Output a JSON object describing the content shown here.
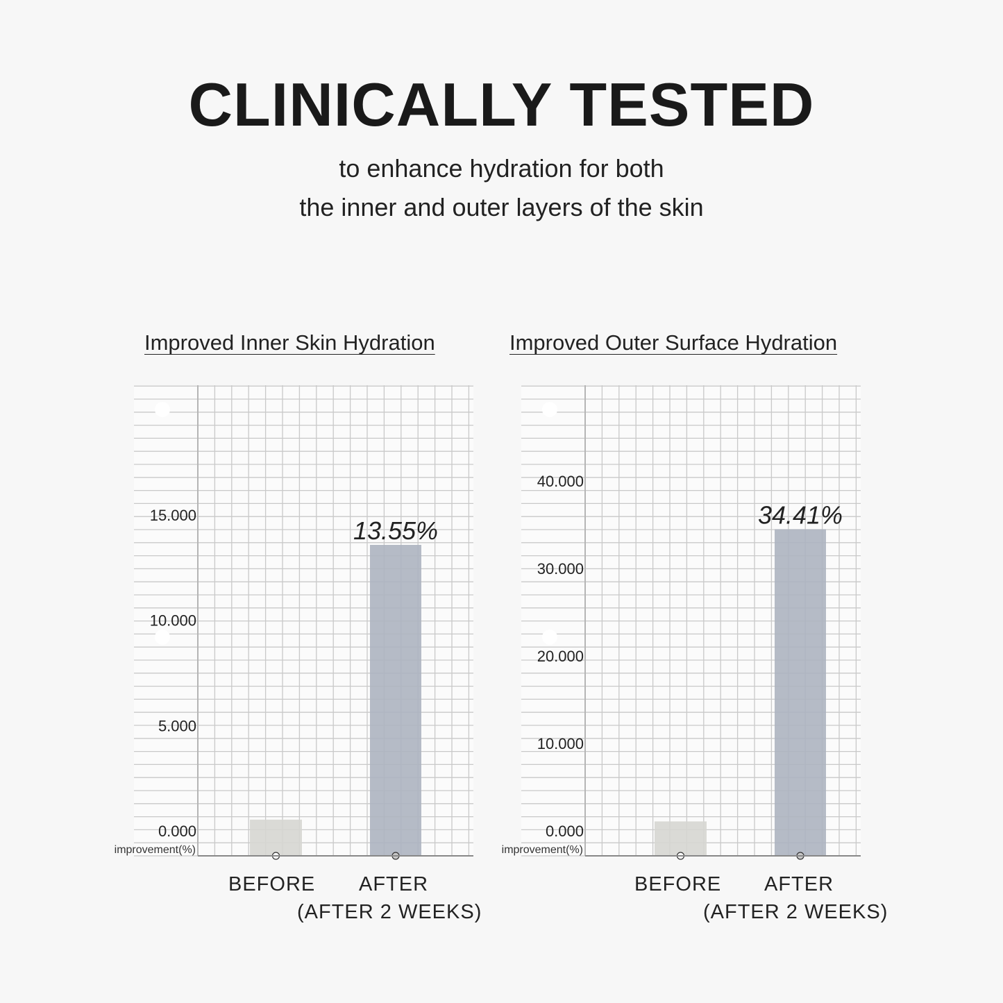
{
  "header": {
    "title": "CLINICALLY TESTED",
    "subtitle_line1": "to enhance hydration for both",
    "subtitle_line2": "the inner and outer layers of the skin"
  },
  "colors": {
    "background": "#f7f7f7",
    "grid_paper": "#fbfbfb",
    "grid_line": "#c9c9c9",
    "before_bar": "#d6d6d2",
    "after_bar": "#adb4c0"
  },
  "chart_data": [
    {
      "type": "bar",
      "title": "Improved Inner Skin Hydration",
      "ylabel": "improvement(%)",
      "categories": [
        "BEFORE",
        "AFTER"
      ],
      "category_sublabels": [
        "",
        "(AFTER 2 WEEKS)"
      ],
      "values": [
        0.5,
        13.55
      ],
      "data_labels": [
        "",
        "13.55%"
      ],
      "yticks": [
        "0.000",
        "5.000",
        "10.000",
        "15.000"
      ],
      "ytick_values": [
        0,
        5,
        10,
        15
      ],
      "ylim": [
        0,
        20
      ],
      "grid": true
    },
    {
      "type": "bar",
      "title": "Improved Outer Surface Hydration",
      "ylabel": "improvement(%)",
      "categories": [
        "BEFORE",
        "AFTER"
      ],
      "category_sublabels": [
        "",
        "(AFTER 2 WEEKS)"
      ],
      "values": [
        1,
        34.41
      ],
      "data_labels": [
        "",
        "34.41%"
      ],
      "yticks": [
        "0.000",
        "10.000",
        "20.000",
        "30.000",
        "40.000"
      ],
      "ytick_values": [
        0,
        10,
        20,
        30,
        40
      ],
      "ylim": [
        0,
        50
      ],
      "grid": true
    }
  ]
}
